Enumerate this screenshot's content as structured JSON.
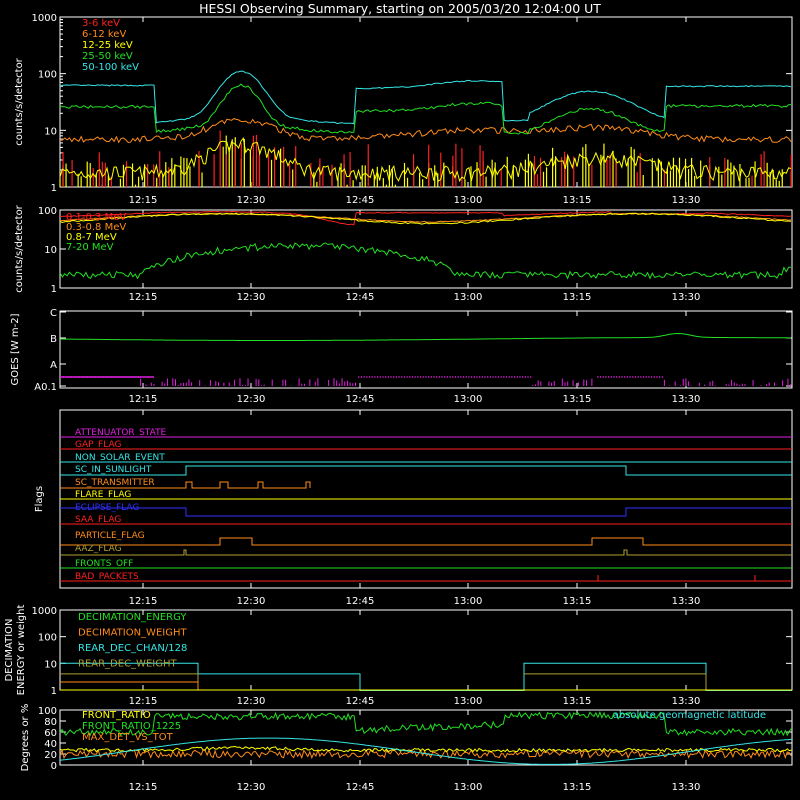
{
  "title": "HESSI Observing Summary, starting on 2005/03/20 12:04:00 UT",
  "colors": {
    "background": "#000000",
    "axis": "#ffffff",
    "red": "#ff2020",
    "orange": "#ff8c1a",
    "yellow": "#ffff00",
    "green": "#22e022",
    "cyan": "#35e6e6",
    "magenta": "#e020e0",
    "blue": "#3030ff",
    "olive": "#b0a030"
  },
  "time_ticks": [
    "12:15",
    "12:30",
    "12:45",
    "13:00",
    "13:15",
    "13:30"
  ],
  "chart_data": [
    {
      "id": "low-energy",
      "type": "line",
      "ylabel": "counts/s/detector",
      "yscale": "log",
      "ylim": [
        1,
        1000
      ],
      "ytick_labels": [
        "1",
        "10",
        "100",
        "1000"
      ],
      "series": [
        {
          "name": "3-6 keV",
          "color": "red"
        },
        {
          "name": "6-12 keV",
          "color": "orange"
        },
        {
          "name": "12-25 keV",
          "color": "yellow"
        },
        {
          "name": "25-50 keV",
          "color": "green"
        },
        {
          "name": "50-100 keV",
          "color": "cyan"
        }
      ],
      "legend": "top-left"
    },
    {
      "id": "high-energy",
      "type": "line",
      "ylabel": "counts/s/detector",
      "yscale": "log",
      "ylim": [
        1,
        100
      ],
      "ytick_labels": [
        "1",
        "10",
        "100"
      ],
      "series": [
        {
          "name": "0.1-0.3 MeV",
          "color": "red"
        },
        {
          "name": "0.3-0.8 MeV",
          "color": "orange"
        },
        {
          "name": "0.8-7 MeV",
          "color": "yellow"
        },
        {
          "name": "7-20 MeV",
          "color": "green"
        }
      ],
      "legend": "top-left"
    },
    {
      "id": "goes",
      "type": "line",
      "ylabel": "GOES [W m-2]",
      "ytick_labels": [
        "A0.1",
        "A",
        "B",
        "C"
      ],
      "series": [
        {
          "name": "GOES",
          "color": "green"
        },
        {
          "name": "",
          "color": "magenta"
        }
      ]
    },
    {
      "id": "flags",
      "type": "line",
      "ylabel": "Flags",
      "flags": [
        {
          "name": "ATTENUATOR_STATE",
          "color": "magenta"
        },
        {
          "name": "GAP_FLAG",
          "color": "red"
        },
        {
          "name": "NON_SOLAR_EVENT",
          "color": "cyan"
        },
        {
          "name": "SC_IN_SUNLIGHT",
          "color": "cyan"
        },
        {
          "name": "SC_TRANSMITTER",
          "color": "orange"
        },
        {
          "name": "FLARE_FLAG",
          "color": "yellow"
        },
        {
          "name": "ECLIPSE_FLAG",
          "color": "blue"
        },
        {
          "name": "SAA_FLAG",
          "color": "red"
        },
        {
          "name": "PARTICLE_FLAG",
          "color": "orange"
        },
        {
          "name": "AAZ_FLAG",
          "color": "olive"
        },
        {
          "name": "FRONTS_OFF",
          "color": "green"
        },
        {
          "name": "BAD_PACKETS",
          "color": "red"
        }
      ]
    },
    {
      "id": "decimation",
      "type": "line",
      "ylabel": "DECIMATION ENERGY or weight",
      "yscale": "log",
      "ylim": [
        1,
        1000
      ],
      "ytick_labels": [
        "1",
        "10",
        "100",
        "1000"
      ],
      "series": [
        {
          "name": "DECIMATION_ENERGY",
          "color": "green"
        },
        {
          "name": "DECIMATION_WEIGHT",
          "color": "orange"
        },
        {
          "name": "REAR_DEC_CHAN/128",
          "color": "cyan"
        },
        {
          "name": "REAR_DEC_WEIGHT",
          "color": "olive"
        }
      ],
      "legend": "top-left"
    },
    {
      "id": "ratio",
      "type": "line",
      "ylabel": "Degrees or %",
      "ylim": [
        0,
        100
      ],
      "ytick_labels": [
        "0",
        "20",
        "40",
        "60",
        "80",
        "100"
      ],
      "series": [
        {
          "name": "FRONT_RATIO",
          "color": "yellow"
        },
        {
          "name": "FRONT_RATIO_1225",
          "color": "green"
        },
        {
          "name": "MAX_DET_VS_TOT",
          "color": "orange"
        },
        {
          "name": "absolute geomagnetic latitude",
          "color": "cyan"
        }
      ],
      "legend": "top-left"
    }
  ]
}
